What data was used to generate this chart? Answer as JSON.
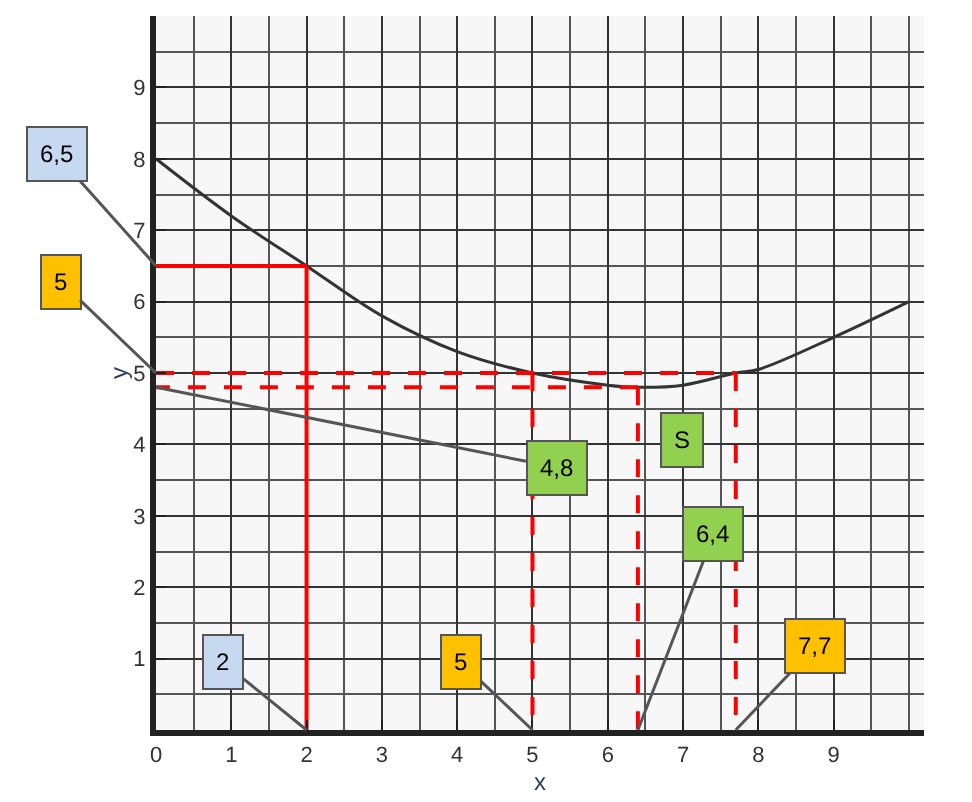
{
  "chart_data": {
    "type": "line",
    "xlabel": "x",
    "ylabel": "y",
    "xlim": [
      0,
      10.2
    ],
    "ylim": [
      0,
      10
    ],
    "xticks": [
      0,
      1,
      2,
      3,
      4,
      5,
      6,
      7,
      8,
      9
    ],
    "yticks": [
      {
        "value": 0,
        "label": null
      },
      1,
      2,
      3,
      4,
      5,
      6,
      7,
      8,
      9
    ],
    "grid": true,
    "marker": "none",
    "series": [
      {
        "color": "#333333",
        "x": [
          0,
          1,
          2,
          3,
          4,
          5,
          6,
          6.4,
          7,
          7.7,
          8,
          9,
          10
        ],
        "values": [
          8,
          7.2,
          6.5,
          5.8,
          5.3,
          5,
          4.83,
          4.8,
          4.83,
          5,
          5.05,
          5.5,
          6
        ]
      },
      {
        "color": "#ff0000",
        "line_style": "solid",
        "x": [
          2,
          2
        ],
        "values": [
          0,
          6.5
        ]
      },
      {
        "color": "#ff0000",
        "line_style": "solid",
        "x": [
          2,
          0
        ],
        "values": [
          6.5,
          6.5
        ]
      },
      {
        "color": "#ff0000",
        "line_style": "dashed",
        "x": [
          0,
          7.7
        ],
        "values": [
          5,
          5
        ]
      },
      {
        "color": "#ff0000",
        "line_style": "dashed",
        "x": [
          5,
          5
        ],
        "values": [
          5,
          0
        ]
      },
      {
        "color": "#ff0000",
        "line_style": "dashed",
        "x": [
          7.7,
          7.7
        ],
        "values": [
          5,
          0
        ]
      },
      {
        "color": "#ff0000",
        "line_style": "dashed",
        "x": [
          6.4,
          0
        ],
        "values": [
          4.8,
          4.8
        ]
      },
      {
        "color": "#ff0000",
        "line_style": "dashed",
        "x": [
          6.4,
          6.4
        ],
        "values": [
          4.8,
          0
        ]
      }
    ],
    "annotations": [
      {
        "text": "6,5",
        "x": 0,
        "y": 6.5
      },
      {
        "text": "5",
        "x": 0,
        "y": 5
      },
      {
        "text": "4,8",
        "x": 0,
        "y": 4.8
      },
      {
        "text": "2",
        "x": 2,
        "y": 0
      },
      {
        "text": "5",
        "x": 5,
        "y": 0
      },
      {
        "text": "6,4",
        "x": 6.4,
        "y": 0
      },
      {
        "text": "7,7",
        "x": 7.7,
        "y": 0
      },
      {
        "text": "S",
        "x": 6.4,
        "y": 4.8
      }
    ]
  }
}
